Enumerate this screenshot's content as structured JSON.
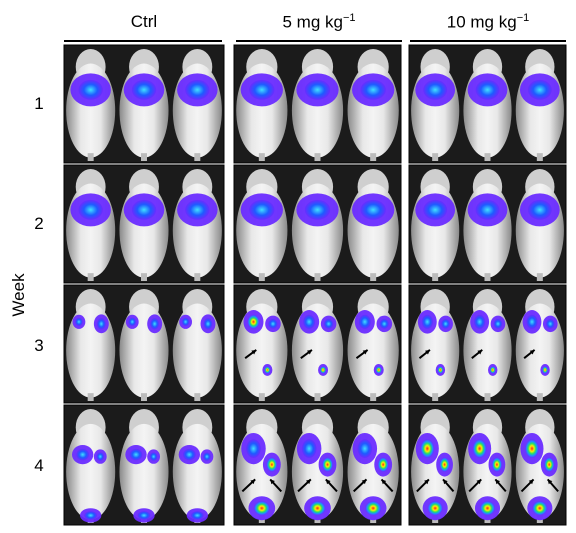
{
  "figure": {
    "y_axis_label": "Week",
    "columns": [
      {
        "label": "Ctrl",
        "sup": ""
      },
      {
        "label": "5 mg kg",
        "sup": "−1"
      },
      {
        "label": "10 mg kg",
        "sup": "−1"
      }
    ],
    "rows": [
      "1",
      "2",
      "3",
      "4"
    ],
    "signal_colors": {
      "low": "#6a2cff",
      "mid": "#1e90ff",
      "high": "#ff2020",
      "hot": "#ffee00"
    },
    "arrow_icon": "arrow-icon"
  }
}
